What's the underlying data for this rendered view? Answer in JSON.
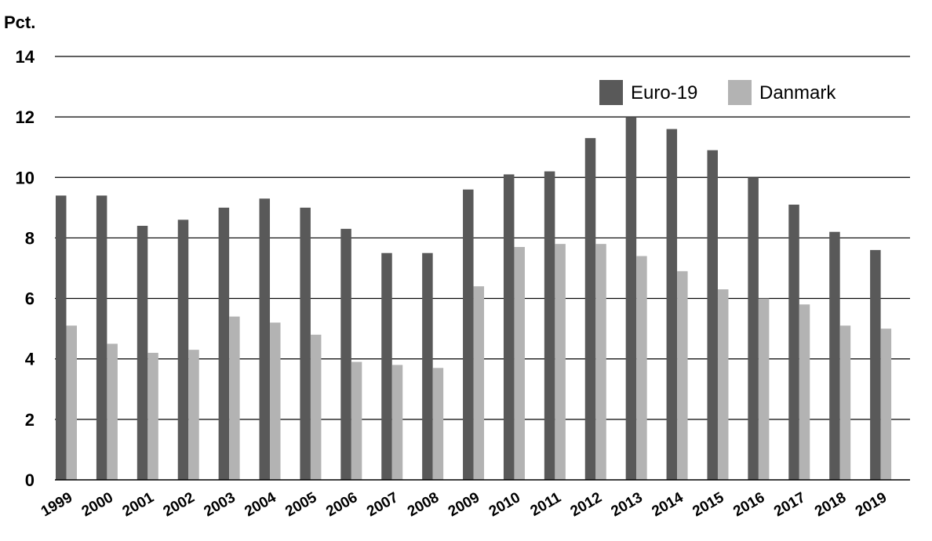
{
  "chart_data": {
    "type": "bar",
    "unit_label": "Pct.",
    "title": "",
    "xlabel": "",
    "ylabel": "Pct.",
    "ylim": [
      0,
      14
    ],
    "yticks": [
      0,
      2,
      4,
      6,
      8,
      10,
      12,
      14
    ],
    "grid": true,
    "legend_position": "top-right",
    "categories": [
      "1999",
      "2000",
      "2001",
      "2002",
      "2003",
      "2004",
      "2005",
      "2006",
      "2007",
      "2008",
      "2009",
      "2010",
      "2011",
      "2012",
      "2013",
      "2014",
      "2015",
      "2016",
      "2017",
      "2018",
      "2019"
    ],
    "series": [
      {
        "name": "Euro-19",
        "color": "#595959",
        "values": [
          9.4,
          9.4,
          8.4,
          8.6,
          9.0,
          9.3,
          9.0,
          8.3,
          7.5,
          7.5,
          9.6,
          10.1,
          10.2,
          11.3,
          12.0,
          11.6,
          10.9,
          10.0,
          9.1,
          8.2,
          7.6
        ]
      },
      {
        "name": "Danmark",
        "color": "#b3b3b3",
        "values": [
          5.1,
          4.5,
          4.2,
          4.3,
          5.4,
          5.2,
          4.8,
          3.9,
          3.8,
          3.7,
          6.4,
          7.7,
          7.8,
          7.8,
          7.4,
          6.9,
          6.3,
          6.0,
          5.8,
          5.1,
          5.0
        ]
      }
    ]
  }
}
